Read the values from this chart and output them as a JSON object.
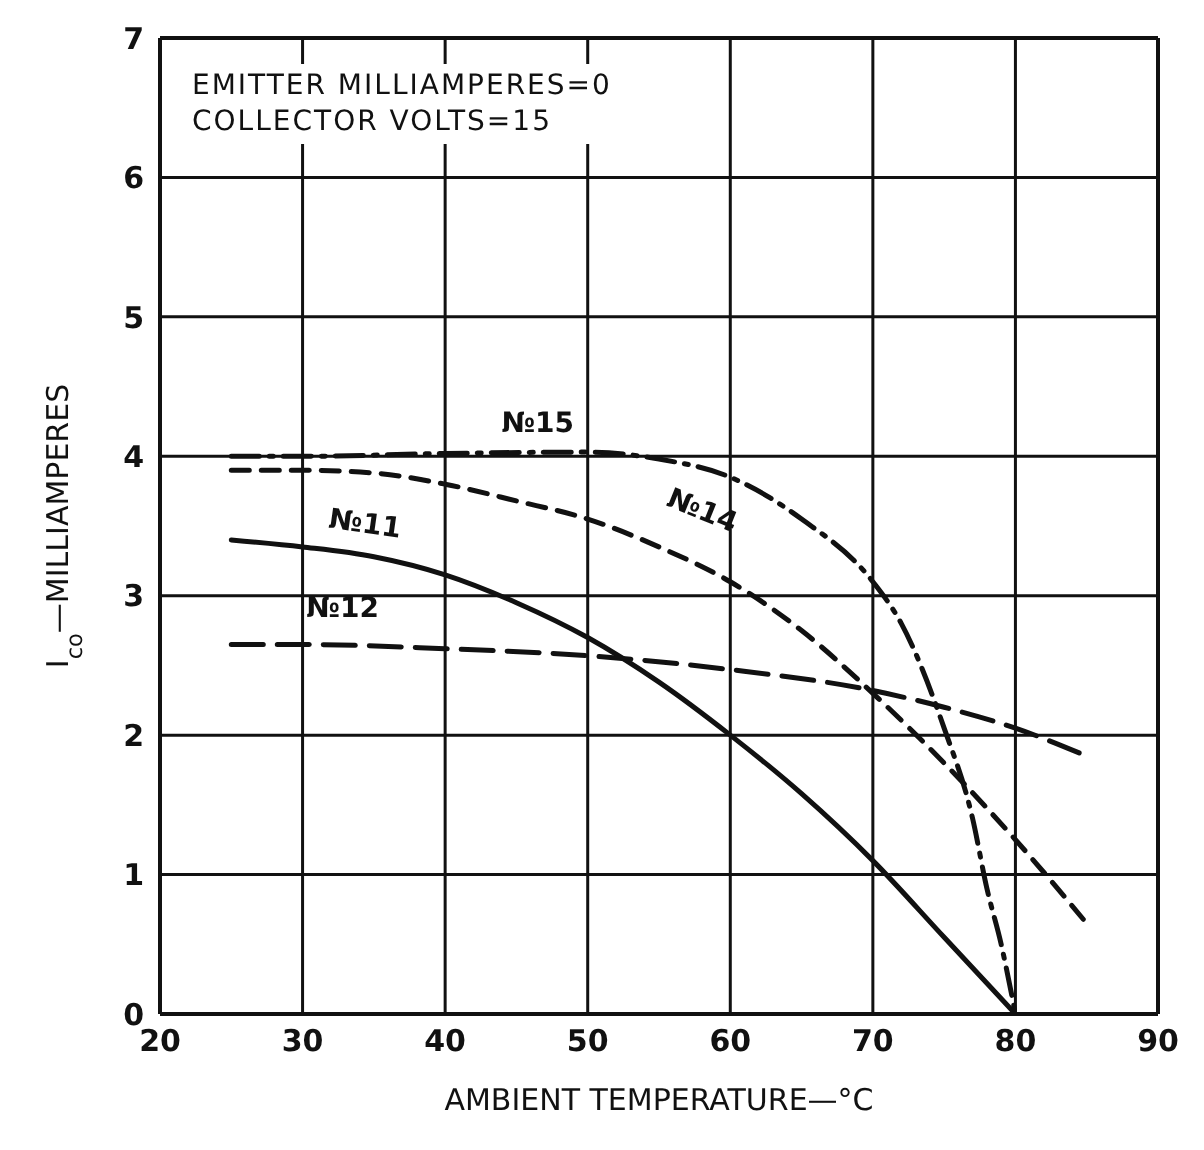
{
  "chart_data": {
    "type": "line",
    "xlabel": "AMBIENT TEMPERATURE—°C",
    "ylabel": "I$_{co}$—MILLIAMPERES",
    "annotations": [
      "EMITTER MILLIAMPERES=0",
      "COLLECTOR VOLTS=15"
    ],
    "xlim": [
      20,
      90
    ],
    "xticks": [
      20,
      30,
      40,
      50,
      60,
      70,
      80,
      90
    ],
    "ylim": [
      0,
      7
    ],
    "yticks": [
      0,
      1,
      2,
      3,
      4,
      5,
      6,
      7
    ],
    "grid": true,
    "marker": "none",
    "series": [
      {
        "name": "№11",
        "color": "#111111",
        "line_style": "solid",
        "x": [
          25,
          30,
          35,
          40,
          45,
          50,
          55,
          60,
          65,
          70,
          75,
          80
        ],
        "values": [
          3.4,
          3.35,
          3.28,
          3.15,
          2.95,
          2.7,
          2.38,
          2.0,
          1.58,
          1.1,
          0.55,
          0
        ]
      },
      {
        "name": "№12",
        "color": "#111111",
        "line_style": "longdash",
        "x": [
          25,
          30,
          40,
          50,
          60,
          70,
          75,
          80,
          85
        ],
        "values": [
          2.65,
          2.65,
          2.62,
          2.57,
          2.47,
          2.32,
          2.2,
          2.05,
          1.85
        ]
      },
      {
        "name": "№14",
        "color": "#111111",
        "line_style": "dashed",
        "x": [
          25,
          30,
          35,
          40,
          45,
          50,
          55,
          60,
          65,
          70,
          75,
          80,
          85
        ],
        "values": [
          3.9,
          3.9,
          3.88,
          3.8,
          3.68,
          3.55,
          3.35,
          3.1,
          2.75,
          2.3,
          1.8,
          1.25,
          0.65
        ]
      },
      {
        "name": "№15",
        "color": "#111111",
        "line_style": "dashdot",
        "x": [
          25,
          30,
          40,
          50,
          55,
          60,
          65,
          70,
          72,
          75,
          77,
          78,
          79,
          80
        ],
        "values": [
          4.0,
          4.0,
          4.02,
          4.03,
          3.98,
          3.85,
          3.55,
          3.1,
          2.8,
          2.05,
          1.4,
          0.9,
          0.5,
          0
        ]
      }
    ]
  }
}
